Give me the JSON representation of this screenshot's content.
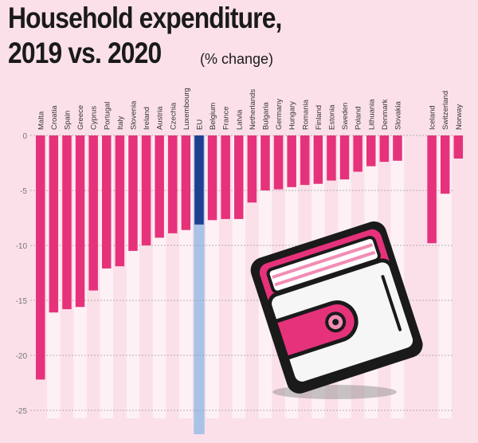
{
  "title_line1": "Household expenditure,",
  "title_line2": "2019 vs. 2020",
  "subtitle": "(% change)",
  "colors": {
    "bar": "#e6327b",
    "eu_bar": "#1f3f8f",
    "eu_highlight": "#a9c3e8",
    "background": "#fbe0ea",
    "stripe": "#fdf1f5"
  },
  "chart_data": {
    "type": "bar",
    "title": "Household expenditure, 2019 vs. 2020",
    "subtitle": "(% change)",
    "xlabel": "",
    "ylabel": "",
    "ylim": [
      -25,
      0
    ],
    "yticks": [
      0,
      -5,
      -10,
      -15,
      -20,
      -25
    ],
    "grid": true,
    "categories": [
      "Malta",
      "Croatia",
      "Spain",
      "Greece",
      "Cyprus",
      "Portugal",
      "Italy",
      "Slovenia",
      "Ireland",
      "Austria",
      "Czechia",
      "Luxembourg",
      "EU",
      "Belgium",
      "France",
      "Latvia",
      "Netherlands",
      "Bulgaria",
      "Germany",
      "Hungary",
      "Romania",
      "Finland",
      "Estonia",
      "Sweden",
      "Poland",
      "Lithuania",
      "Denmark",
      "Slovakia",
      "Iceland",
      "Switzerland",
      "Norway"
    ],
    "values": [
      -22.2,
      -16.1,
      -15.8,
      -15.6,
      -14.1,
      -12.1,
      -11.9,
      -10.5,
      -10.0,
      -9.3,
      -8.9,
      -8.6,
      -8.1,
      -7.7,
      -7.6,
      -7.6,
      -6.1,
      -5.0,
      -4.9,
      -4.7,
      -4.5,
      -4.4,
      -4.1,
      -4.0,
      -3.3,
      -2.8,
      -2.4,
      -2.3,
      -9.8,
      -5.3,
      -2.1
    ],
    "highlight": "EU"
  }
}
